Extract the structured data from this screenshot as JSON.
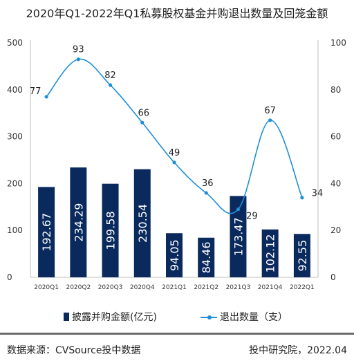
{
  "title": "2020年Q1-2022年Q1私募股权基金并购退出数量及回笼金额",
  "chart_data": {
    "type": "bar",
    "categories": [
      "2020Q1",
      "2020Q2",
      "2020Q3",
      "2020Q4",
      "2021Q1",
      "2021Q2",
      "2021Q3",
      "2021Q4",
      "2022Q1"
    ],
    "series": [
      {
        "name": "披露并购金额(亿元)",
        "type": "bar",
        "axis": "left",
        "values": [
          192.67,
          234.29,
          199.58,
          230.54,
          94.05,
          84.46,
          173.47,
          102.12,
          92.55
        ],
        "labels": [
          "192.67",
          "234.29",
          "199.58",
          "230.54",
          "94.05",
          "84.46",
          "173.47",
          "102.12",
          "92.55"
        ],
        "color": "#0a2a5e"
      },
      {
        "name": "退出数量（支）",
        "type": "line",
        "axis": "right",
        "values": [
          77,
          93,
          82,
          66,
          49,
          36,
          29,
          67,
          34
        ],
        "labels": [
          "77",
          "93",
          "82",
          "66",
          "49",
          "36",
          "29",
          "67",
          "34"
        ],
        "color": "#1f8fd8"
      }
    ],
    "y_left": {
      "range": [
        0,
        500
      ],
      "ticks": [
        "0",
        "100",
        "200",
        "300",
        "400",
        "500"
      ]
    },
    "y_right": {
      "range": [
        0,
        100
      ],
      "ticks": [
        "0",
        "20",
        "40",
        "60",
        "80",
        "100"
      ]
    },
    "grid": false,
    "legend_position": "bottom"
  },
  "legend": {
    "bar_label": "披露并购金额(亿元)",
    "line_label": "退出数量（支）"
  },
  "footer": {
    "source": "数据来源：CVSource投中数据",
    "credit": "投中研究院，2022.04"
  }
}
